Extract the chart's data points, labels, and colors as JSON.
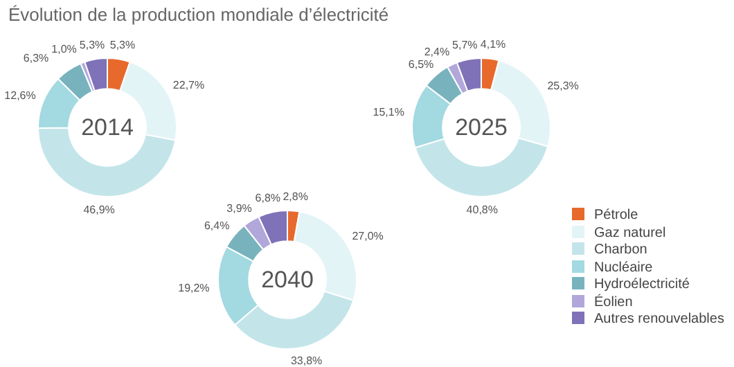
{
  "chart_data": [
    {
      "type": "donut",
      "title": "Évolution de la production mondiale d’électricité",
      "annotations": [
        "2014"
      ],
      "categories": [
        null,
        null,
        null,
        null,
        null,
        null,
        null
      ],
      "values": [
        5.3,
        22.7,
        46.9,
        12.6,
        6.3,
        1.0,
        5.3
      ],
      "value_labels": [
        "5,3%",
        "22,7%",
        "46,9%",
        "12,6%",
        "6,3%",
        "1,0%",
        "5,3%"
      ],
      "colors": [
        "#e8692c",
        "#e3f4f7",
        "#c3e5ea",
        "#a3d9e0",
        "#78b3bd",
        "#b1a7db",
        "#7f72b8"
      ],
      "legend": false
    },
    {
      "type": "donut",
      "annotations": [
        "2025"
      ],
      "categories": [
        null,
        null,
        null,
        null,
        null,
        null,
        null
      ],
      "values": [
        4.1,
        25.3,
        40.8,
        15.1,
        6.5,
        2.4,
        5.7
      ],
      "value_labels": [
        "4,1%",
        "25,3%",
        "40,8%",
        "15,1%",
        "6,5%",
        "2,4%",
        "5,7%"
      ],
      "colors": [
        "#e8692c",
        "#e3f4f7",
        "#c3e5ea",
        "#a3d9e0",
        "#78b3bd",
        "#b1a7db",
        "#7f72b8"
      ],
      "legend": false
    },
    {
      "type": "donut",
      "annotations": [
        "2040"
      ],
      "categories": [
        "Pétrole",
        "Gaz naturel",
        "Charbon",
        "Nucléaire",
        "Hydroélectricité",
        "Éolien",
        "Autres renouvelables"
      ],
      "values": [
        2.8,
        27.0,
        33.8,
        19.2,
        6.4,
        3.9,
        6.8
      ],
      "value_labels": [
        "2,8%",
        "27,0%",
        "33,8%",
        "19,2%",
        "6,4%",
        "3,9%",
        "6,8%"
      ],
      "colors": [
        "#e8692c",
        "#e3f4f7",
        "#c3e5ea",
        "#a3d9e0",
        "#78b3bd",
        "#b1a7db",
        "#7f72b8"
      ],
      "legend": "right"
    }
  ]
}
